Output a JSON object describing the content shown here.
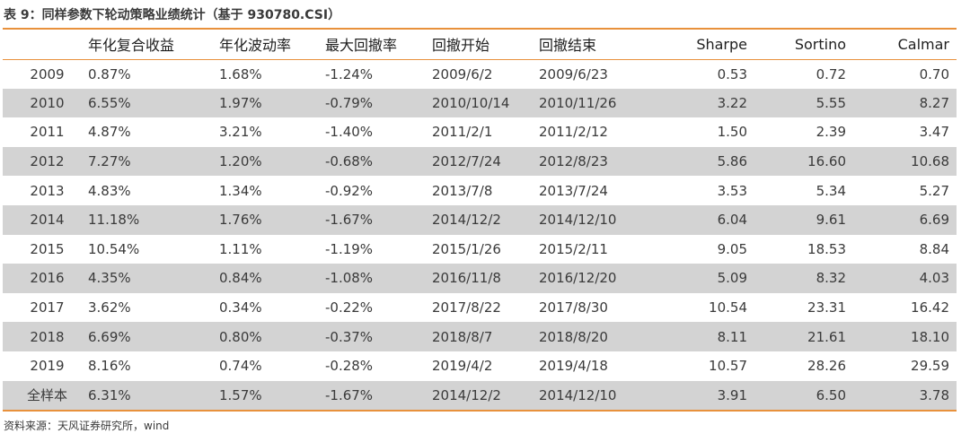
{
  "title": "表 9：同样参数下轮动策略业绩统计（基于 930780.CSI）",
  "headers": [
    "",
    "年化复合收益",
    "年化波动率",
    "最大回撤率",
    "回撤开始",
    "回撤结束",
    "Sharpe",
    "Sortino",
    "Calmar"
  ],
  "rows": [
    [
      "2009",
      "0.87%",
      "1.68%",
      "-1.24%",
      "2009/6/2",
      "2009/6/23",
      "0.53",
      "0.72",
      "0.70"
    ],
    [
      "2010",
      "6.55%",
      "1.97%",
      "-0.79%",
      "2010/10/14",
      "2010/11/26",
      "3.22",
      "5.55",
      "8.27"
    ],
    [
      "2011",
      "4.87%",
      "3.21%",
      "-1.40%",
      "2011/2/1",
      "2011/2/12",
      "1.50",
      "2.39",
      "3.47"
    ],
    [
      "2012",
      "7.27%",
      "1.20%",
      "-0.68%",
      "2012/7/24",
      "2012/8/23",
      "5.86",
      "16.60",
      "10.68"
    ],
    [
      "2013",
      "4.83%",
      "1.34%",
      "-0.92%",
      "2013/7/8",
      "2013/7/24",
      "3.53",
      "5.34",
      "5.27"
    ],
    [
      "2014",
      "11.18%",
      "1.76%",
      "-1.67%",
      "2014/12/2",
      "2014/12/10",
      "6.04",
      "9.61",
      "6.69"
    ],
    [
      "2015",
      "10.54%",
      "1.11%",
      "-1.19%",
      "2015/1/26",
      "2015/2/11",
      "9.05",
      "18.53",
      "8.84"
    ],
    [
      "2016",
      "4.35%",
      "0.84%",
      "-1.08%",
      "2016/11/8",
      "2016/12/20",
      "5.09",
      "8.32",
      "4.03"
    ],
    [
      "2017",
      "3.62%",
      "0.34%",
      "-0.22%",
      "2017/8/22",
      "2017/8/30",
      "10.54",
      "23.31",
      "16.42"
    ],
    [
      "2018",
      "6.69%",
      "0.80%",
      "-0.37%",
      "2018/8/7",
      "2018/8/20",
      "8.11",
      "21.61",
      "18.10"
    ],
    [
      "2019",
      "8.16%",
      "0.74%",
      "-0.28%",
      "2019/4/2",
      "2019/4/18",
      "10.57",
      "28.26",
      "29.59"
    ],
    [
      "全样本",
      "6.31%",
      "1.57%",
      "-1.67%",
      "2014/12/2",
      "2014/12/10",
      "3.91",
      "6.50",
      "3.78"
    ]
  ],
  "source": "资料来源：天风证券研究所，wind",
  "colors": {
    "accent_rule": "#e8913c",
    "stripe": "#d3d3d3"
  }
}
